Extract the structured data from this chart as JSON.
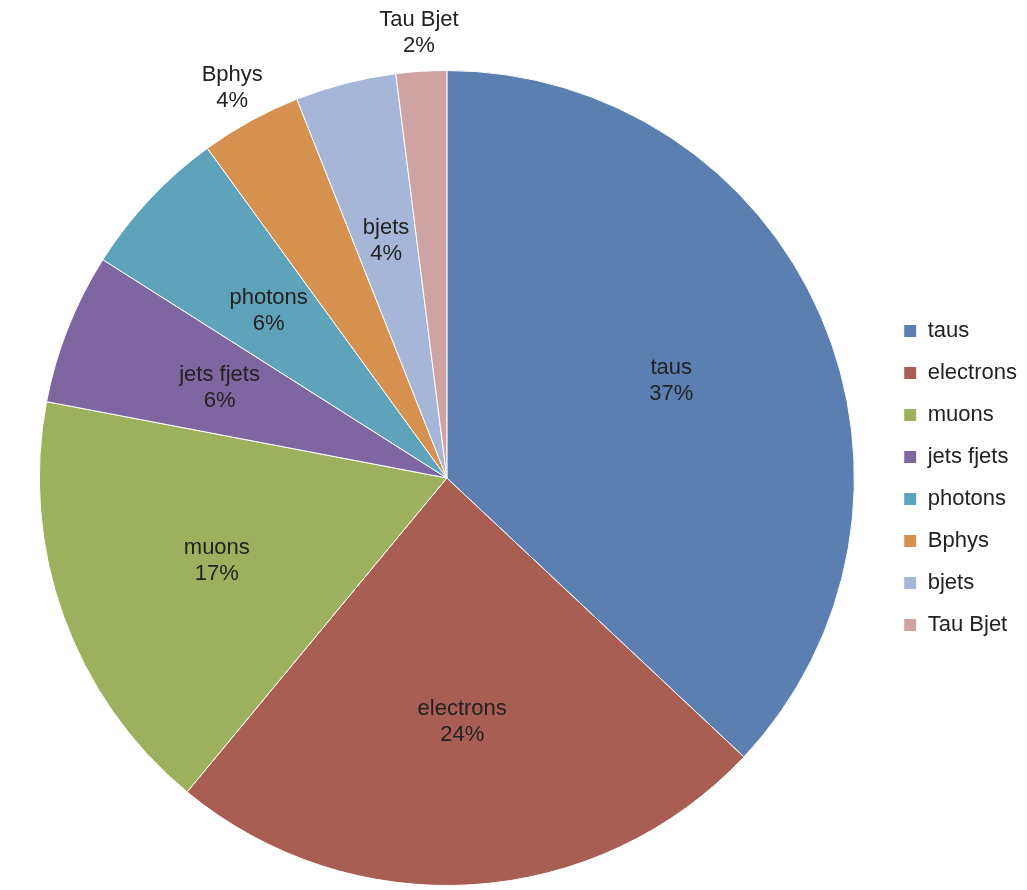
{
  "chart_data": {
    "type": "pie",
    "categories": [
      "taus",
      "electrons",
      "muons",
      "jets fjets",
      "photons",
      "Bphys",
      "bjets",
      "Tau Bjet"
    ],
    "values": [
      37,
      24,
      17,
      6,
      6,
      4,
      4,
      2
    ],
    "value_labels": [
      "37%",
      "24%",
      "17%",
      "6%",
      "6%",
      "4%",
      "4%",
      "2%"
    ],
    "colors": [
      "#5b7fb0",
      "#a95e54",
      "#9db05e",
      "#7e67a0",
      "#5ea3b9",
      "#d7914e",
      "#a6b6d8",
      "#cfa3a1"
    ],
    "legend": "right"
  }
}
